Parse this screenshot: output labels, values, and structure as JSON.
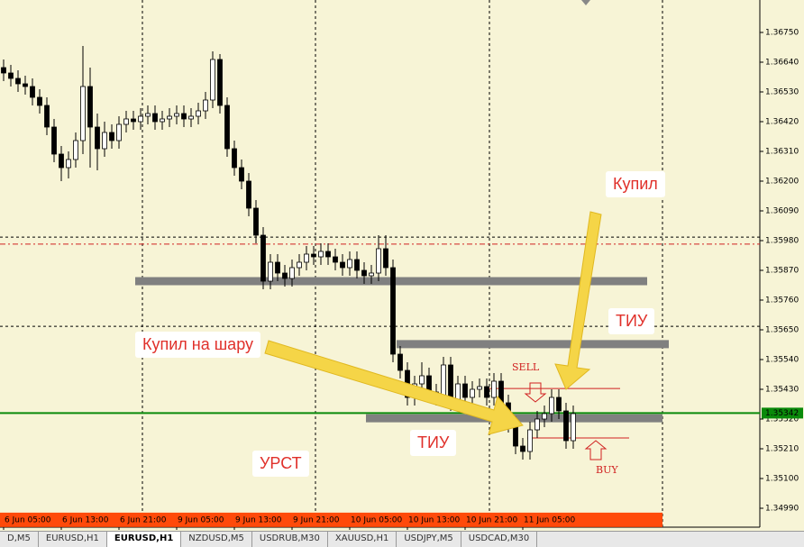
{
  "chart_data": {
    "type": "candlestick",
    "categories": [
      "6 Jun 05:00",
      null,
      null,
      null,
      null,
      null,
      null,
      null,
      "6 Jun 13:00",
      null,
      null,
      null,
      null,
      null,
      null,
      null,
      "6 Jun 21:00",
      null,
      null,
      null,
      null,
      null,
      null,
      null,
      "9 Jun 05:00",
      null,
      null,
      null,
      null,
      null,
      null,
      null,
      "9 Jun 13:00",
      null,
      null,
      null,
      null,
      null,
      null,
      null,
      "9 Jun 21:00",
      null,
      null,
      null,
      null,
      null,
      null,
      null,
      "10 Jun 05:00",
      null,
      null,
      null,
      null,
      null,
      null,
      null,
      "10 Jun 13:00",
      null,
      null,
      null,
      null,
      null,
      null,
      null,
      "10 Jun 21:00",
      null,
      null,
      null,
      null,
      null,
      null,
      null,
      "11 Jun 05:00",
      null,
      null,
      null,
      null,
      null,
      null,
      null
    ],
    "open": [
      1.3662,
      1.366,
      1.3658,
      1.3656,
      1.3655,
      1.3651,
      1.3648,
      1.364,
      1.363,
      1.3625,
      1.3628,
      1.3635,
      1.3655,
      1.364,
      1.3632,
      1.3638,
      1.3635,
      1.3641,
      1.3643,
      1.3642,
      1.3644,
      1.3645,
      1.3642,
      1.3643,
      1.3644,
      1.3645,
      1.3643,
      1.3644,
      1.3646,
      1.365,
      1.3665,
      1.3648,
      1.3632,
      1.3625,
      1.362,
      1.361,
      1.36,
      1.3583,
      1.359,
      1.3586,
      1.3584,
      1.3588,
      1.359,
      1.3593,
      1.3592,
      1.3594,
      1.3592,
      1.359,
      1.3588,
      1.3591,
      1.3587,
      1.3585,
      1.3586,
      1.3595,
      1.3588,
      1.3556,
      1.355,
      1.354,
      1.3545,
      1.3548,
      1.3542,
      1.354,
      1.3552,
      1.3538,
      1.3545,
      1.354,
      1.3543,
      1.3544,
      1.354,
      1.3546,
      1.3538,
      1.353,
      1.3522,
      1.352,
      1.3528,
      1.3532,
      1.3534,
      1.354,
      1.3535,
      1.3524
    ],
    "high": [
      1.3665,
      1.3663,
      1.3661,
      1.3659,
      1.3658,
      1.3654,
      1.3651,
      1.3643,
      1.3633,
      1.3631,
      1.3638,
      1.367,
      1.3662,
      1.3645,
      1.3642,
      1.3641,
      1.3644,
      1.3646,
      1.3646,
      1.3647,
      1.3648,
      1.3648,
      1.3646,
      1.3647,
      1.3648,
      1.3648,
      1.3647,
      1.3649,
      1.3653,
      1.3668,
      1.3667,
      1.3651,
      1.3635,
      1.3628,
      1.3623,
      1.3613,
      1.3603,
      1.3593,
      1.3593,
      1.3589,
      1.3591,
      1.3593,
      1.3596,
      1.3596,
      1.3597,
      1.3597,
      1.3595,
      1.3593,
      1.3594,
      1.3594,
      1.359,
      1.3589,
      1.36,
      1.36,
      1.3591,
      1.3559,
      1.3553,
      1.3548,
      1.3553,
      1.3551,
      1.3545,
      1.3555,
      1.3555,
      1.3548,
      1.3548,
      1.3546,
      1.3547,
      1.3547,
      1.3549,
      1.3549,
      1.3541,
      1.3533,
      1.3525,
      1.3531,
      1.3535,
      1.3537,
      1.3543,
      1.3543,
      1.3538,
      1.3537
    ],
    "low": [
      1.3657,
      1.3655,
      1.3653,
      1.3652,
      1.3648,
      1.3645,
      1.3637,
      1.3627,
      1.362,
      1.3621,
      1.3625,
      1.363,
      1.3625,
      1.3624,
      1.3629,
      1.3632,
      1.3632,
      1.3638,
      1.3639,
      1.3639,
      1.3641,
      1.3639,
      1.3639,
      1.364,
      1.3641,
      1.364,
      1.364,
      1.3641,
      1.3643,
      1.3647,
      1.3645,
      1.3629,
      1.3622,
      1.3617,
      1.3607,
      1.3597,
      1.358,
      1.358,
      1.3583,
      1.3581,
      1.3581,
      1.3585,
      1.3587,
      1.3589,
      1.3589,
      1.3589,
      1.3587,
      1.3585,
      1.3585,
      1.3584,
      1.3582,
      1.3582,
      1.3583,
      1.3585,
      1.3553,
      1.3547,
      1.3537,
      1.3537,
      1.3542,
      1.3539,
      1.3537,
      1.3537,
      1.3535,
      1.3535,
      1.3537,
      1.3537,
      1.354,
      1.3537,
      1.3537,
      1.3535,
      1.3527,
      1.3519,
      1.3517,
      1.3517,
      1.3525,
      1.3529,
      1.3531,
      1.3532,
      1.3521,
      1.3521
    ],
    "close": [
      1.366,
      1.3658,
      1.3656,
      1.3655,
      1.3651,
      1.3648,
      1.364,
      1.363,
      1.3625,
      1.3628,
      1.3635,
      1.3655,
      1.364,
      1.3632,
      1.3638,
      1.3635,
      1.3641,
      1.3643,
      1.3642,
      1.3644,
      1.3645,
      1.3642,
      1.3643,
      1.3644,
      1.3645,
      1.3643,
      1.3644,
      1.3646,
      1.365,
      1.3665,
      1.3648,
      1.3632,
      1.3625,
      1.362,
      1.361,
      1.36,
      1.3583,
      1.359,
      1.3586,
      1.3584,
      1.3588,
      1.359,
      1.3593,
      1.3592,
      1.3594,
      1.3592,
      1.359,
      1.3588,
      1.3591,
      1.3587,
      1.3585,
      1.3586,
      1.3595,
      1.3588,
      1.3556,
      1.355,
      1.354,
      1.3545,
      1.3548,
      1.3542,
      1.354,
      1.3552,
      1.3538,
      1.3545,
      1.354,
      1.3543,
      1.3544,
      1.354,
      1.3546,
      1.3538,
      1.353,
      1.3522,
      1.352,
      1.3528,
      1.3532,
      1.3534,
      1.354,
      1.3535,
      1.3524,
      1.3534
    ],
    "ylim": [
      1.3492,
      1.3687
    ],
    "yticks": [
      {
        "value": 1.3675,
        "label": "1.36750"
      },
      {
        "value": 1.3664,
        "label": "1.36640"
      },
      {
        "value": 1.3653,
        "label": "1.36530"
      },
      {
        "value": 1.3642,
        "label": "1.36420"
      },
      {
        "value": 1.3631,
        "label": "1.36310"
      },
      {
        "value": 1.362,
        "label": "1.36200"
      },
      {
        "value": 1.3609,
        "label": "1.36090"
      },
      {
        "value": 1.3598,
        "label": "1.35980"
      },
      {
        "value": 1.3587,
        "label": "1.35870"
      },
      {
        "value": 1.3576,
        "label": "1.35760"
      },
      {
        "value": 1.3565,
        "label": "1.35650"
      },
      {
        "value": 1.3554,
        "label": "1.35540"
      },
      {
        "value": 1.3543,
        "label": "1.35430"
      },
      {
        "value": 1.3532,
        "label": "1.35320"
      },
      {
        "value": 1.3521,
        "label": "1.35210"
      },
      {
        "value": 1.351,
        "label": "1.35100"
      },
      {
        "value": 1.3499,
        "label": "1.34990"
      }
    ],
    "current_price": 1.35342,
    "levels": [
      {
        "value": 1.35993,
        "color": "#000000",
        "style": "dash"
      },
      {
        "value": 1.35967,
        "color": "#d02020",
        "style": "dashdot"
      },
      {
        "value": 1.35663,
        "color": "#000000",
        "style": "dash"
      },
      {
        "value": 1.3583,
        "color": "#808080",
        "style": "zone"
      },
      {
        "value": 1.35597,
        "color": "#808080",
        "style": "zone"
      },
      {
        "value": 1.35323,
        "color": "#808080",
        "style": "zone"
      },
      {
        "value": 1.34947,
        "color": "#ff4a0a",
        "style": "zone-wide"
      },
      {
        "value": 1.35433,
        "color": "#d02020",
        "style": "thin"
      },
      {
        "value": 1.3525,
        "color": "#d02020",
        "style": "thin"
      }
    ],
    "annotations": [
      "Купил",
      "ТИУ",
      "Купил на шару",
      "ТИУ",
      "УРСТ",
      "SELL",
      "BUY"
    ]
  },
  "tabs": [
    "D,M5",
    "EURUSD,H1",
    "EURUSD,H1",
    "NZDUSD,M5",
    "USDRUB,M30",
    "XAUUSD,H1",
    "USDJPY,M5",
    "USDCAD,M30"
  ]
}
